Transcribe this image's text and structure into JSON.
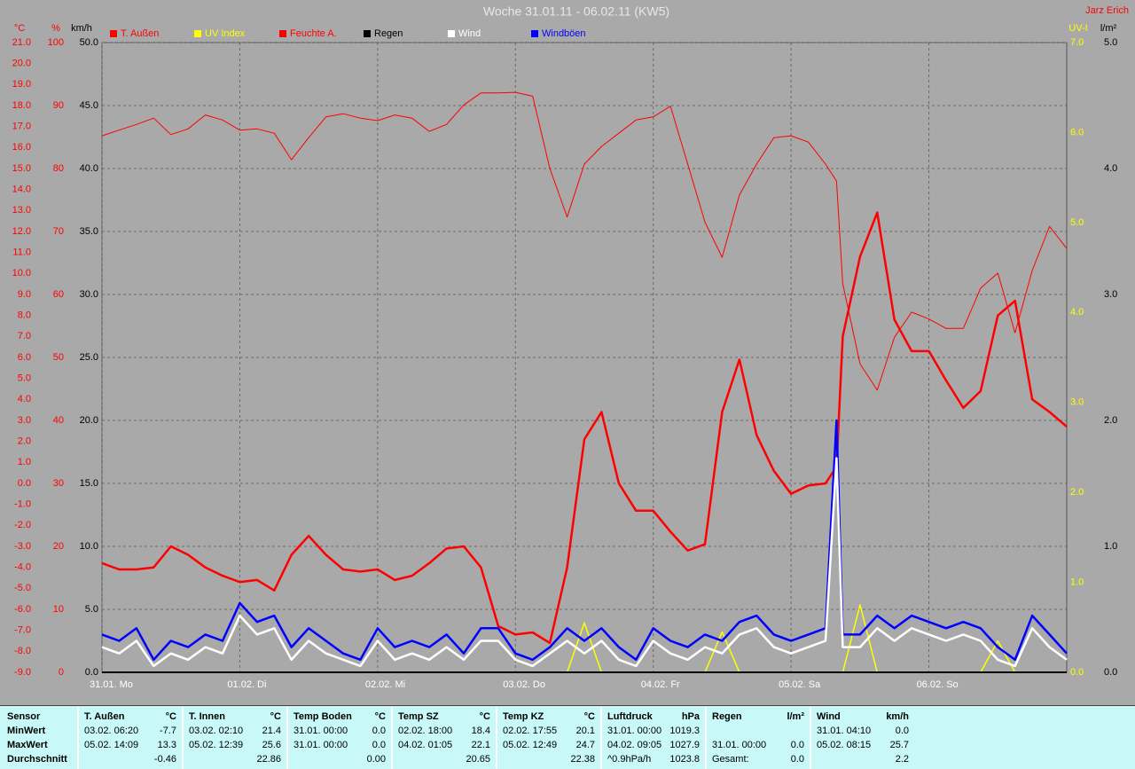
{
  "chart_data": {
    "type": "line",
    "title": "Woche 31.01.11 - 06.02.11 (KW5)",
    "author": "Jarz Erich",
    "grid": true,
    "xlim": [
      0,
      7
    ],
    "xticks": [
      {
        "value": 0,
        "label": "31.01. Mo"
      },
      {
        "value": 1,
        "label": "01.02. Di"
      },
      {
        "value": 2,
        "label": "02.02. Mi"
      },
      {
        "value": 3,
        "label": "03.02. Do"
      },
      {
        "value": 4,
        "label": "04.02. Fr"
      },
      {
        "value": 5,
        "label": "05.02. Sa"
      },
      {
        "value": 6,
        "label": "06.02. So"
      }
    ],
    "axes": {
      "temp": {
        "label": "°C",
        "color": "#ff0000",
        "lim": [
          -9,
          21
        ],
        "ticks": [
          {
            "value": -9,
            "label": "-9.0"
          },
          {
            "value": -8,
            "label": "-8.0"
          },
          {
            "value": -7,
            "label": "-7.0"
          },
          {
            "value": -6,
            "label": "-6.0"
          },
          {
            "value": -5,
            "label": "-5.0"
          },
          {
            "value": -4,
            "label": "-4.0"
          },
          {
            "value": -3,
            "label": "-3.0"
          },
          {
            "value": -2,
            "label": "-2.0"
          },
          {
            "value": -1,
            "label": "-1.0"
          },
          {
            "value": 0,
            "label": "0.0"
          },
          {
            "value": 1,
            "label": "1.0"
          },
          {
            "value": 2,
            "label": "2.0"
          },
          {
            "value": 3,
            "label": "3.0"
          },
          {
            "value": 4,
            "label": "4.0"
          },
          {
            "value": 5,
            "label": "5.0"
          },
          {
            "value": 6,
            "label": "6.0"
          },
          {
            "value": 7,
            "label": "7.0"
          },
          {
            "value": 8,
            "label": "8.0"
          },
          {
            "value": 9,
            "label": "9.0"
          },
          {
            "value": 10,
            "label": "10.0"
          },
          {
            "value": 11,
            "label": "11.0"
          },
          {
            "value": 12,
            "label": "12.0"
          },
          {
            "value": 13,
            "label": "13.0"
          },
          {
            "value": 14,
            "label": "14.0"
          },
          {
            "value": 15,
            "label": "15.0"
          },
          {
            "value": 16,
            "label": "16.0"
          },
          {
            "value": 17,
            "label": "17.0"
          },
          {
            "value": 18,
            "label": "18.0"
          },
          {
            "value": 19,
            "label": "19.0"
          },
          {
            "value": 20,
            "label": "20.0"
          },
          {
            "value": 21,
            "label": "21.0"
          }
        ]
      },
      "hum": {
        "label": "%",
        "color": "#ff0000",
        "lim": [
          0,
          100
        ],
        "ticks": [
          0,
          10,
          20,
          30,
          40,
          50,
          60,
          70,
          80,
          90,
          100
        ]
      },
      "wind": {
        "label": "km/h",
        "color": "#000000",
        "lim": [
          0,
          50
        ],
        "ticks": [
          {
            "value": 0,
            "label": "0.0"
          },
          {
            "value": 5,
            "label": "5.0"
          },
          {
            "value": 10,
            "label": "10.0"
          },
          {
            "value": 15,
            "label": "15.0"
          },
          {
            "value": 20,
            "label": "20.0"
          },
          {
            "value": 25,
            "label": "25.0"
          },
          {
            "value": 30,
            "label": "30.0"
          },
          {
            "value": 35,
            "label": "35.0"
          },
          {
            "value": 40,
            "label": "40.0"
          },
          {
            "value": 45,
            "label": "45.0"
          },
          {
            "value": 50,
            "label": "50.0"
          }
        ]
      },
      "uv": {
        "label": "UV-I",
        "color": "#ffff00",
        "lim": [
          0,
          7
        ],
        "ticks": [
          {
            "value": 0,
            "label": "0.0"
          },
          {
            "value": 1,
            "label": "1.0"
          },
          {
            "value": 2,
            "label": "2.0"
          },
          {
            "value": 3,
            "label": "3.0"
          },
          {
            "value": 4,
            "label": "4.0"
          },
          {
            "value": 5,
            "label": "5.0"
          },
          {
            "value": 6,
            "label": "6.0"
          },
          {
            "value": 7,
            "label": "7.0"
          }
        ]
      },
      "rain": {
        "label": "l/m²",
        "color": "#000000",
        "lim": [
          0,
          5
        ],
        "ticks": [
          {
            "value": 0,
            "label": "0.0"
          },
          {
            "value": 1,
            "label": "1.0"
          },
          {
            "value": 2,
            "label": "2.0"
          },
          {
            "value": 3,
            "label": "3.0"
          },
          {
            "value": 4,
            "label": "4.0"
          },
          {
            "value": 5,
            "label": "5.0"
          }
        ]
      }
    },
    "x": [
      0,
      0.125,
      0.25,
      0.375,
      0.5,
      0.625,
      0.75,
      0.875,
      1,
      1.125,
      1.25,
      1.375,
      1.5,
      1.625,
      1.75,
      1.875,
      2,
      2.125,
      2.25,
      2.375,
      2.5,
      2.625,
      2.75,
      2.875,
      3,
      3.125,
      3.25,
      3.375,
      3.5,
      3.625,
      3.75,
      3.875,
      4,
      4.125,
      4.25,
      4.375,
      4.5,
      4.625,
      4.75,
      4.875,
      5,
      5.125,
      5.25,
      5.33,
      5.375,
      5.5,
      5.625,
      5.75,
      5.875,
      6,
      6.125,
      6.25,
      6.375,
      6.5,
      6.625,
      6.75,
      6.875,
      7
    ],
    "series": [
      {
        "name": "T. Außen",
        "axis": "temp",
        "color": "#ff0000",
        "line_width": 2.5,
        "values": [
          -3.8,
          -4.1,
          -4.1,
          -4.0,
          -3.0,
          -3.4,
          -4.0,
          -4.4,
          -4.7,
          -4.6,
          -5.1,
          -3.4,
          -2.5,
          -3.4,
          -4.1,
          -4.2,
          -4.1,
          -4.6,
          -4.4,
          -3.8,
          -3.1,
          -3.0,
          -4.0,
          -6.8,
          -7.2,
          -7.1,
          -7.6,
          -4.0,
          2.1,
          3.4,
          0.0,
          -1.3,
          -1.3,
          -2.3,
          -3.2,
          -2.9,
          3.4,
          5.9,
          2.3,
          0.6,
          -0.5,
          -0.1,
          0.0,
          0.8,
          7.0,
          10.8,
          12.9,
          7.8,
          6.3,
          6.3,
          4.9,
          3.6,
          4.4,
          8.0,
          8.7,
          4.0,
          3.4,
          2.7
        ]
      },
      {
        "name": "UV Index",
        "axis": "uv",
        "color": "#ffff00",
        "line_width": 1.5,
        "values": [
          0,
          0,
          0,
          0,
          0,
          0,
          0,
          0,
          0,
          0,
          0,
          0,
          0,
          0,
          0,
          0,
          0,
          0,
          0,
          0,
          0,
          0,
          0,
          0,
          0,
          0,
          0,
          0,
          0.55,
          0,
          0,
          0,
          0,
          0,
          0,
          0,
          0.45,
          0,
          0,
          0,
          0,
          0,
          0,
          0,
          0,
          0.75,
          0,
          0,
          0,
          0,
          0,
          0,
          0,
          0.35,
          0,
          0,
          0,
          0
        ]
      },
      {
        "name": "Feuchte A.",
        "axis": "hum",
        "color": "#ff0000",
        "line_width": 1,
        "values": [
          85.2,
          86.1,
          87.0,
          88.0,
          85.4,
          86.3,
          88.5,
          87.7,
          86.1,
          86.3,
          85.6,
          81.4,
          84.9,
          88.2,
          88.7,
          88.0,
          87.6,
          88.5,
          88.0,
          85.9,
          87.0,
          90.1,
          92.0,
          92.0,
          92.1,
          91.5,
          80.0,
          72.3,
          80.7,
          83.5,
          85.6,
          87.7,
          88.2,
          89.9,
          80.7,
          71.5,
          65.9,
          75.8,
          80.7,
          84.9,
          85.2,
          84.2,
          80.7,
          78.0,
          61.7,
          49.0,
          44.8,
          53.2,
          57.2,
          56.1,
          54.6,
          54.6,
          61.0,
          63.4,
          53.9,
          63.8,
          70.8,
          67.3
        ]
      },
      {
        "name": "Regen",
        "axis": "rain",
        "color": "#000000",
        "line_width": 2,
        "values": [
          0,
          0,
          0,
          0,
          0,
          0,
          0,
          0,
          0,
          0,
          0,
          0,
          0,
          0,
          0,
          0,
          0,
          0,
          0,
          0,
          0,
          0,
          0,
          0,
          0,
          0,
          0,
          0,
          0,
          0,
          0,
          0,
          0,
          0,
          0,
          0,
          0,
          0,
          0,
          0,
          0,
          0,
          0,
          0,
          0,
          0,
          0,
          0,
          0,
          0,
          0,
          0,
          0,
          0,
          0,
          0,
          0,
          0
        ]
      },
      {
        "name": "Wind",
        "axis": "wind",
        "color": "#ffffff",
        "line_width": 2.5,
        "values": [
          2.0,
          1.5,
          2.5,
          0.5,
          1.5,
          1.0,
          2.0,
          1.5,
          4.5,
          3.0,
          3.5,
          1.0,
          2.5,
          1.5,
          1.0,
          0.5,
          2.5,
          1.0,
          1.5,
          1.0,
          2.0,
          1.0,
          2.5,
          2.5,
          1.0,
          0.5,
          1.5,
          2.5,
          1.5,
          2.5,
          1.0,
          0.5,
          2.5,
          1.5,
          1.0,
          2.0,
          1.5,
          3.0,
          3.5,
          2.0,
          1.5,
          2.0,
          2.5,
          17.0,
          2.0,
          2.0,
          3.5,
          2.5,
          3.5,
          3.0,
          2.5,
          3.0,
          2.5,
          1.0,
          0.5,
          3.5,
          2.0,
          1.0
        ]
      },
      {
        "name": "Windböen",
        "axis": "wind",
        "color": "#0000ff",
        "line_width": 2.5,
        "values": [
          3.0,
          2.5,
          3.5,
          1.0,
          2.5,
          2.0,
          3.0,
          2.5,
          5.5,
          4.0,
          4.5,
          2.0,
          3.5,
          2.5,
          1.5,
          1.0,
          3.5,
          2.0,
          2.5,
          2.0,
          3.0,
          1.5,
          3.5,
          3.5,
          1.5,
          1.0,
          2.0,
          3.5,
          2.5,
          3.5,
          2.0,
          1.0,
          3.5,
          2.5,
          2.0,
          3.0,
          2.5,
          4.0,
          4.5,
          3.0,
          2.5,
          3.0,
          3.5,
          20.0,
          3.0,
          3.0,
          4.5,
          3.5,
          4.5,
          4.0,
          3.5,
          4.0,
          3.5,
          2.0,
          1.0,
          4.5,
          3.0,
          1.5
        ]
      }
    ]
  },
  "stats": {
    "row_labels": [
      "Sensor",
      "MinWert",
      "MaxWert",
      "Durchschnitt"
    ],
    "columns": [
      {
        "name": "T. Außen",
        "unit": "°C",
        "min": {
          "time": "03.02. 06:20",
          "value": "-7.7"
        },
        "max": {
          "time": "05.02. 14:09",
          "value": "13.3"
        },
        "avg": {
          "value": "-0.46"
        }
      },
      {
        "name": "T. Innen",
        "unit": "°C",
        "min": {
          "time": "03.02. 02:10",
          "value": "21.4"
        },
        "max": {
          "time": "05.02. 12:39",
          "value": "25.6"
        },
        "avg": {
          "value": "22.86"
        }
      },
      {
        "name": "Temp Boden",
        "unit": "°C",
        "min": {
          "time": "31.01. 00:00",
          "value": "0.0"
        },
        "max": {
          "time": "31.01. 00:00",
          "value": "0.0"
        },
        "avg": {
          "value": "0.00"
        }
      },
      {
        "name": "Temp SZ",
        "unit": "°C",
        "min": {
          "time": "02.02. 18:00",
          "value": "18.4"
        },
        "max": {
          "time": "04.02. 01:05",
          "value": "22.1"
        },
        "avg": {
          "value": "20.65"
        }
      },
      {
        "name": "Temp KZ",
        "unit": "°C",
        "min": {
          "time": "02.02. 17:55",
          "value": "20.1"
        },
        "max": {
          "time": "05.02. 12:49",
          "value": "24.7"
        },
        "avg": {
          "value": "22.38"
        }
      },
      {
        "name": "Luftdruck",
        "unit": "hPa",
        "min": {
          "time": "31.01. 00:00",
          "value": "1019.3"
        },
        "max": {
          "time": "04.02. 09:05",
          "value": "1027.9"
        },
        "avg": {
          "time": "^0.9hPa/h",
          "value": "1023.8"
        }
      },
      {
        "name": "Regen",
        "unit": "l/m²",
        "max": {
          "time": "31.01. 00:00",
          "value": "0.0"
        },
        "avg": {
          "time": "Gesamt:",
          "value": "0.0"
        }
      },
      {
        "name": "Wind",
        "unit": "km/h",
        "min": {
          "time": "31.01. 04:10",
          "value": "0.0"
        },
        "max": {
          "time": "05.02. 08:15",
          "value": "25.7"
        },
        "avg": {
          "value": "2.2"
        }
      }
    ]
  }
}
